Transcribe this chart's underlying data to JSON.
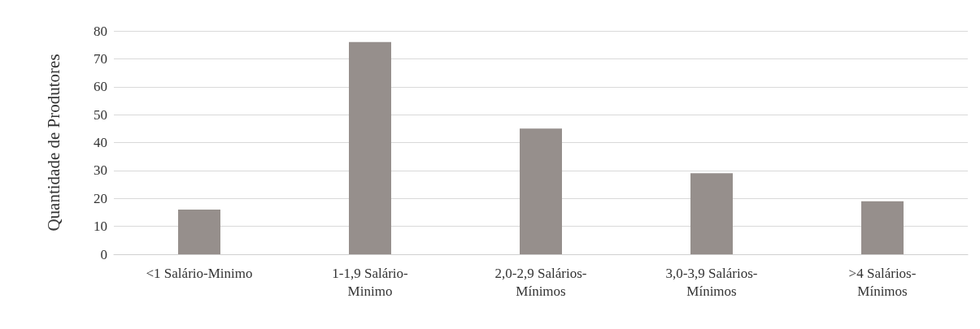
{
  "chart_data": {
    "type": "bar",
    "ylabel": "Quantidade de Produtores",
    "categories": [
      "<1 Salário-Minimo",
      "1-1,9 Salário-Minimo",
      "2,0-2,9 Salários-Mínimos",
      "3,0-3,9 Salários-Mínimos",
      ">4 Salários-Mínimos"
    ],
    "values": [
      16,
      76,
      45,
      29,
      19
    ],
    "color": "#968f8c",
    "ylim": [
      0,
      80
    ],
    "yticks": [
      0,
      10,
      20,
      30,
      40,
      50,
      60,
      70,
      80
    ],
    "grid": "y"
  }
}
